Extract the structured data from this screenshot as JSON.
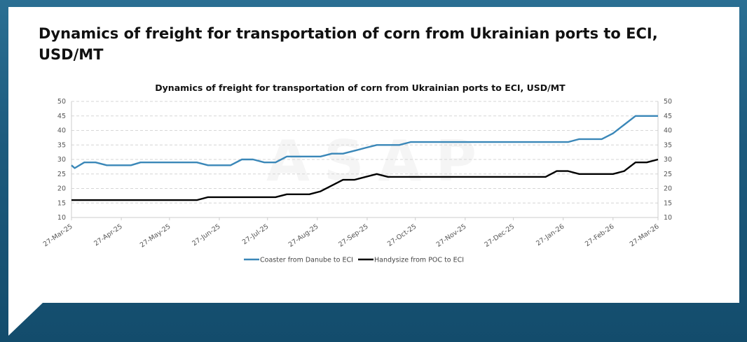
{
  "page_title": "Dynamics of freight for transportation of corn from Ukrainian ports to ECI, USD/MT",
  "watermark": "ASAP",
  "colors": {
    "background": "#1d5b7e",
    "coaster": "#3a87b8",
    "handysize": "#000000"
  },
  "chart_data": {
    "type": "line",
    "title": "Dynamics of freight for transportation of corn from Ukrainian ports to ECI, USD/MT",
    "xlabel": "",
    "ylabel": "",
    "ylim": [
      10,
      50
    ],
    "yticks": [
      "10",
      "15",
      "20",
      "25",
      "30",
      "35",
      "40",
      "45",
      "50"
    ],
    "xlim": [
      "2025-03-27",
      "2026-03-27"
    ],
    "xtick_labels": [
      "27-Mar-25",
      "27-Apr-25",
      "27-May-25",
      "27-Jun-25",
      "27-Jul-25",
      "27-Aug-25",
      "27-Sep-25",
      "27-Oct-25",
      "27-Nov-25",
      "27-Dec-25",
      "27-Jan-26",
      "27-Feb-26",
      "27-Mar-26"
    ],
    "xtick_dates": [
      "2025-03-27",
      "2025-04-27",
      "2025-05-27",
      "2025-06-27",
      "2025-07-27",
      "2025-08-27",
      "2025-09-27",
      "2025-10-27",
      "2025-11-27",
      "2025-12-27",
      "2026-01-27",
      "2026-02-27",
      "2026-03-27"
    ],
    "grid": "horizontal dashed",
    "legend_position": "bottom",
    "dual_y_axis": true,
    "series": [
      {
        "name": "Coaster from Danube to ECI",
        "color": "#3a87b8",
        "points": [
          [
            "2025-03-27",
            28
          ],
          [
            "2025-03-29",
            27
          ],
          [
            "2025-04-04",
            29
          ],
          [
            "2025-04-11",
            29
          ],
          [
            "2025-04-18",
            28
          ],
          [
            "2025-05-03",
            28
          ],
          [
            "2025-05-09",
            29
          ],
          [
            "2025-06-13",
            29
          ],
          [
            "2025-06-20",
            28
          ],
          [
            "2025-07-04",
            28
          ],
          [
            "2025-07-11",
            30
          ],
          [
            "2025-07-18",
            30
          ],
          [
            "2025-07-25",
            29
          ],
          [
            "2025-08-01",
            29
          ],
          [
            "2025-08-08",
            31
          ],
          [
            "2025-08-29",
            31
          ],
          [
            "2025-09-05",
            32
          ],
          [
            "2025-09-12",
            32
          ],
          [
            "2025-09-19",
            33
          ],
          [
            "2025-09-26",
            34
          ],
          [
            "2025-10-03",
            35
          ],
          [
            "2025-10-17",
            35
          ],
          [
            "2025-10-24",
            36
          ],
          [
            "2026-01-30",
            36
          ],
          [
            "2026-02-06",
            37
          ],
          [
            "2026-02-20",
            37
          ],
          [
            "2026-02-27",
            39
          ],
          [
            "2026-03-13",
            45
          ],
          [
            "2026-03-27",
            45
          ]
        ]
      },
      {
        "name": "Handysize from POC to ECI",
        "color": "#000000",
        "points": [
          [
            "2025-03-27",
            16
          ],
          [
            "2025-06-13",
            16
          ],
          [
            "2025-06-20",
            17
          ],
          [
            "2025-08-01",
            17
          ],
          [
            "2025-08-08",
            18
          ],
          [
            "2025-08-22",
            18
          ],
          [
            "2025-08-29",
            19
          ],
          [
            "2025-09-12",
            23
          ],
          [
            "2025-09-19",
            23
          ],
          [
            "2025-10-03",
            25
          ],
          [
            "2025-10-10",
            24
          ],
          [
            "2026-01-16",
            24
          ],
          [
            "2026-01-23",
            26
          ],
          [
            "2026-01-30",
            26
          ],
          [
            "2026-02-06",
            25
          ],
          [
            "2026-02-27",
            25
          ],
          [
            "2026-03-06",
            26
          ],
          [
            "2026-03-13",
            29
          ],
          [
            "2026-03-20",
            29
          ],
          [
            "2026-03-27",
            30
          ]
        ]
      }
    ]
  }
}
